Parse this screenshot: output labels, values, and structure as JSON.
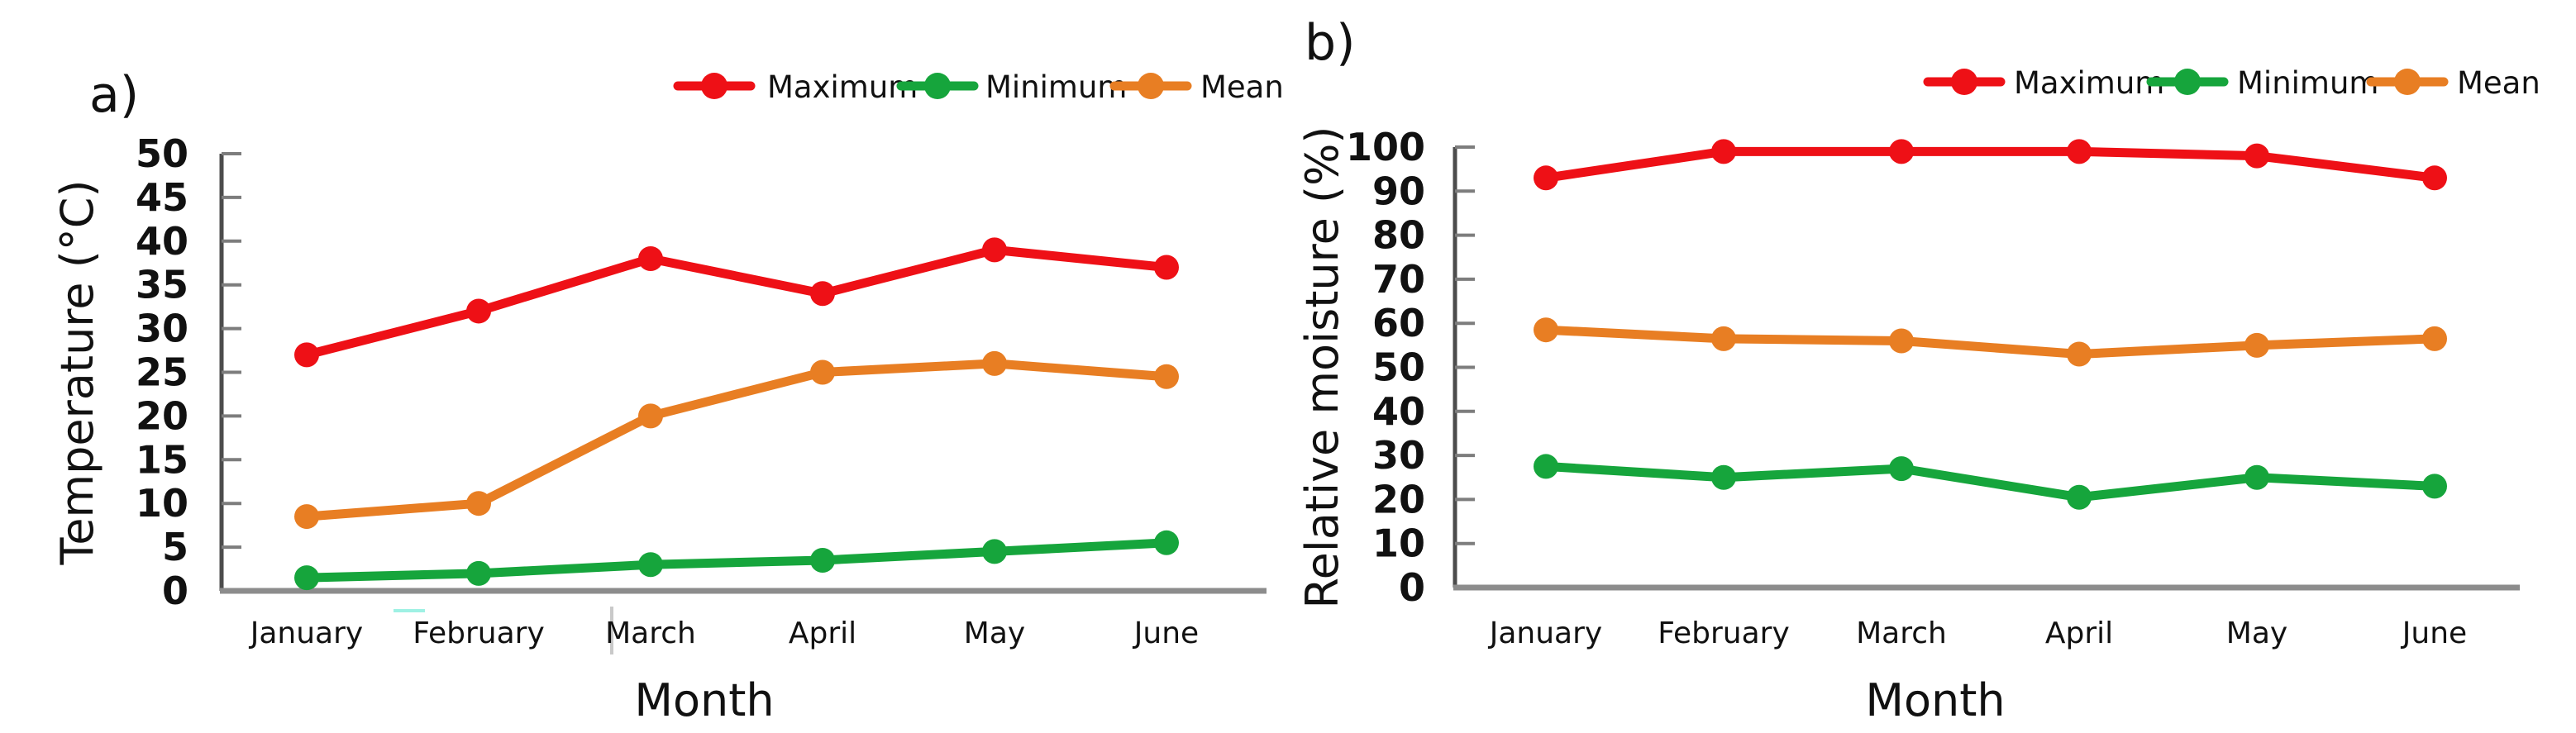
{
  "page": {
    "background": "#ffffff",
    "axis_line_color": "#8c8c8c",
    "spine_color": "#4c4c4c",
    "tick_color": "#7d7d7d",
    "text_color": "#111111",
    "artifact_cyan_color": "#9ff1e4",
    "artifact_gray_color": "#c9c9c9"
  },
  "chart_data": [
    {
      "type": "line",
      "panel_label": "a)",
      "title": "",
      "xlabel": "Month",
      "ylabel": "Temperature (°C)",
      "categories": [
        "January",
        "February",
        "March",
        "April",
        "May",
        "June"
      ],
      "series": [
        {
          "name": "Maximum",
          "color": "#ee1016",
          "values": [
            27,
            32,
            38,
            34,
            39,
            37
          ]
        },
        {
          "name": "Minimum",
          "color": "#16a53c",
          "values": [
            1.5,
            2,
            3,
            3.5,
            4.5,
            5.5
          ]
        },
        {
          "name": "Mean",
          "color": "#e87e23",
          "values": [
            8.5,
            10,
            20,
            25,
            26,
            24.5
          ]
        }
      ],
      "ylim": [
        0,
        50
      ],
      "ytick_step": 5,
      "grid": false,
      "legend_position": "top-right",
      "legend_labels": [
        "Maximum",
        "Minimum",
        "Mean"
      ]
    },
    {
      "type": "line",
      "panel_label": "b)",
      "title": "",
      "xlabel": "Month",
      "ylabel": "Relative moisture (%)",
      "categories": [
        "January",
        "February",
        "March",
        "April",
        "May",
        "June"
      ],
      "series": [
        {
          "name": "Maximum",
          "color": "#ee1016",
          "values": [
            93,
            99,
            99,
            99,
            98,
            93
          ]
        },
        {
          "name": "Minimum",
          "color": "#16a53c",
          "values": [
            27.5,
            25,
            27,
            20.5,
            25,
            23
          ]
        },
        {
          "name": "Mean",
          "color": "#e87e23",
          "values": [
            58.5,
            56.5,
            56,
            53,
            55,
            56.5
          ]
        }
      ],
      "ylim": [
        0,
        100
      ],
      "ytick_step": 10,
      "grid": false,
      "legend_position": "top-right",
      "legend_labels": [
        "Maximum",
        "Minimum",
        "Mean"
      ]
    }
  ]
}
